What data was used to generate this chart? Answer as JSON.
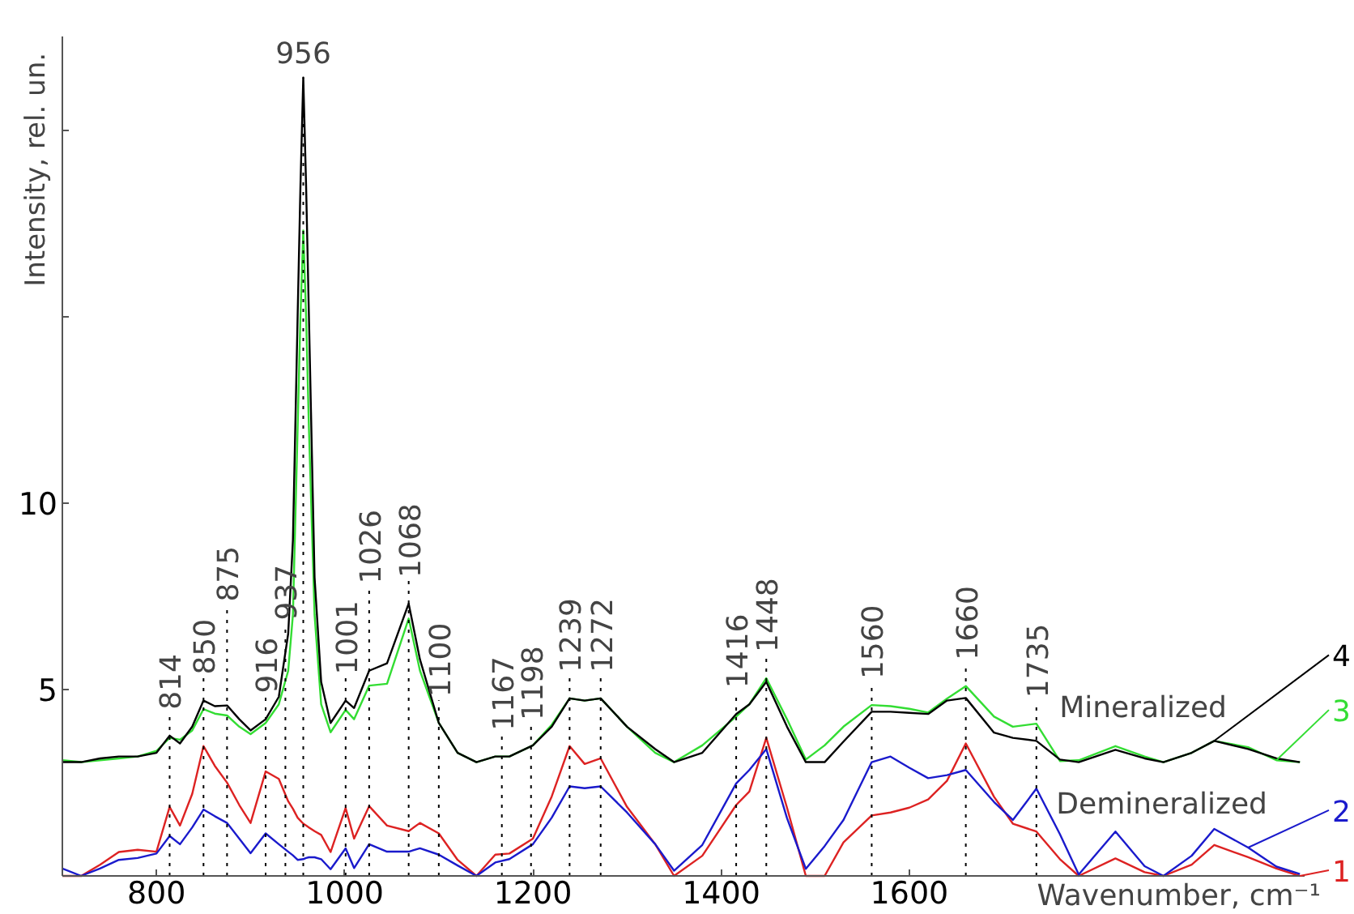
{
  "chart_data": {
    "type": "line",
    "xlabel": "Wavenumber, cm⁻¹",
    "ylabel": "Intensity, rel. un.",
    "x": [
      700,
      720,
      740,
      760,
      780,
      800,
      814,
      825,
      838,
      850,
      862,
      875,
      888,
      900,
      916,
      930,
      940,
      945,
      950,
      953,
      956,
      959,
      962,
      968,
      975,
      985,
      1001,
      1010,
      1026,
      1045,
      1068,
      1080,
      1100,
      1120,
      1140,
      1160,
      1175,
      1200,
      1220,
      1239,
      1255,
      1272,
      1300,
      1330,
      1350,
      1380,
      1416,
      1430,
      1448,
      1470,
      1490,
      1510,
      1530,
      1560,
      1580,
      1600,
      1620,
      1640,
      1660,
      1690,
      1710,
      1735,
      1760,
      1780,
      1819,
      1850,
      1870,
      1900,
      1924,
      1960,
      1990,
      2015
    ],
    "series": [
      {
        "name": "1",
        "color": "#dd2222",
        "values": [
          0,
          0,
          0.3,
          0.64,
          0.7,
          0.65,
          1.85,
          1.35,
          2.2,
          3.48,
          2.95,
          2.5,
          1.9,
          1.42,
          2.8,
          2.6,
          2.0,
          1.8,
          1.56,
          1.48,
          1.4,
          1.35,
          1.3,
          1.2,
          1.1,
          0.64,
          1.82,
          1.0,
          1.87,
          1.35,
          1.2,
          1.42,
          1.14,
          0.43,
          0,
          0.57,
          0.6,
          1.0,
          2.13,
          3.48,
          3.0,
          3.15,
          1.85,
          0.85,
          0,
          0.54,
          1.9,
          2.26,
          3.7,
          1.83,
          0,
          0,
          0.9,
          1.62,
          1.7,
          1.83,
          2.05,
          2.55,
          3.55,
          2.12,
          1.4,
          1.19,
          0.45,
          0,
          0.47,
          0.1,
          0,
          0.3,
          0.83,
          0.5,
          0.2,
          0
        ]
      },
      {
        "name": "2",
        "color": "#1a1acc",
        "values": [
          0.2,
          0,
          0.2,
          0.43,
          0.48,
          0.6,
          1.07,
          0.85,
          1.3,
          1.78,
          1.6,
          1.42,
          1.0,
          0.61,
          1.14,
          0.85,
          0.65,
          0.55,
          0.43,
          0.44,
          0.45,
          0.48,
          0.5,
          0.5,
          0.45,
          0.18,
          0.74,
          0.21,
          0.85,
          0.65,
          0.65,
          0.74,
          0.57,
          0.28,
          0,
          0.36,
          0.45,
          0.85,
          1.56,
          2.4,
          2.35,
          2.4,
          1.7,
          0.85,
          0.14,
          0.83,
          2.48,
          2.84,
          3.4,
          1.55,
          0.19,
          0.8,
          1.5,
          3.05,
          3.2,
          2.9,
          2.62,
          2.7,
          2.84,
          1.98,
          1.5,
          2.34,
          1.12,
          0.04,
          1.19,
          0.26,
          0,
          0.54,
          1.26,
          0.76,
          0.25,
          0.05
        ]
      },
      {
        "name": "3",
        "color": "#33dd33",
        "values": [
          3.1,
          3.05,
          3.1,
          3.15,
          3.2,
          3.35,
          3.7,
          3.65,
          3.9,
          4.47,
          4.35,
          4.3,
          4.0,
          3.8,
          4.1,
          4.6,
          5.5,
          7,
          12,
          15,
          17.3,
          15,
          12,
          7,
          4.6,
          3.85,
          4.45,
          4.2,
          5.1,
          5.15,
          6.9,
          5.5,
          4.1,
          3.3,
          3.05,
          3.2,
          3.2,
          3.5,
          4.05,
          4.76,
          4.7,
          4.76,
          4.0,
          3.3,
          3.05,
          3.5,
          4.27,
          4.6,
          5.3,
          4.2,
          3.12,
          3.5,
          4.0,
          4.58,
          4.55,
          4.48,
          4.38,
          4.75,
          5.09,
          4.27,
          4.0,
          4.08,
          3.08,
          3.1,
          3.48,
          3.2,
          3.05,
          3.3,
          3.62,
          3.45,
          3.1,
          3.05
        ]
      },
      {
        "name": "4",
        "color": "#000000",
        "values": [
          3.05,
          3.05,
          3.15,
          3.2,
          3.2,
          3.3,
          3.76,
          3.55,
          4.0,
          4.7,
          4.55,
          4.57,
          4.2,
          3.9,
          4.2,
          4.8,
          6.5,
          9,
          15,
          18.5,
          21.4,
          18.5,
          15,
          8,
          5.2,
          4.1,
          4.7,
          4.5,
          5.5,
          5.7,
          7.3,
          5.8,
          4.1,
          3.3,
          3.05,
          3.2,
          3.2,
          3.5,
          4.0,
          4.76,
          4.7,
          4.76,
          4.0,
          3.4,
          3.05,
          3.3,
          4.34,
          4.6,
          5.2,
          4.0,
          3.05,
          3.05,
          3.6,
          4.4,
          4.4,
          4.37,
          4.34,
          4.7,
          4.77,
          3.84,
          3.7,
          3.62,
          3.12,
          3.05,
          3.38,
          3.15,
          3.05,
          3.3,
          3.62,
          3.4,
          3.15,
          3.05
        ]
      }
    ],
    "xlim": [
      700,
      2020
    ],
    "ylim": [
      0,
      22.5
    ],
    "xticks": [
      800,
      1000,
      1200,
      1400,
      1600
    ],
    "yticks": [
      5,
      10,
      {
        "value": 15,
        "label": null
      },
      {
        "value": 20,
        "label": null
      }
    ],
    "ref_lines": [
      {
        "axis": "x",
        "value": 814,
        "label": "814",
        "line_style": "dotted"
      },
      {
        "axis": "x",
        "value": 850,
        "label": "850",
        "line_style": "dotted"
      },
      {
        "axis": "x",
        "value": 875,
        "label": "875",
        "line_style": "dotted"
      },
      {
        "axis": "x",
        "value": 916,
        "label": "916",
        "line_style": "dotted"
      },
      {
        "axis": "x",
        "value": 937,
        "label": "937",
        "line_style": "dotted"
      },
      {
        "axis": "x",
        "value": 956,
        "label": "956",
        "line_style": "dotted"
      },
      {
        "axis": "x",
        "value": 1001,
        "label": "1001",
        "line_style": "dotted"
      },
      {
        "axis": "x",
        "value": 1026,
        "label": "1026",
        "line_style": "dotted"
      },
      {
        "axis": "x",
        "value": 1068,
        "label": "1068",
        "line_style": "dotted"
      },
      {
        "axis": "x",
        "value": 1100,
        "label": "1100",
        "line_style": "dotted"
      },
      {
        "axis": "x",
        "value": 1167,
        "label": "1167",
        "line_style": "dotted"
      },
      {
        "axis": "x",
        "value": 1198,
        "label": "1198",
        "line_style": "dotted"
      },
      {
        "axis": "x",
        "value": 1239,
        "label": "1239",
        "line_style": "dotted"
      },
      {
        "axis": "x",
        "value": 1272,
        "label": "1272",
        "line_style": "dotted"
      },
      {
        "axis": "x",
        "value": 1416,
        "label": "1416",
        "line_style": "dotted"
      },
      {
        "axis": "x",
        "value": 1448,
        "label": "1448",
        "line_style": "dotted"
      },
      {
        "axis": "x",
        "value": 1560,
        "label": "1560",
        "line_style": "dotted"
      },
      {
        "axis": "x",
        "value": 1660,
        "label": "1660",
        "line_style": "dotted"
      },
      {
        "axis": "x",
        "value": 1735,
        "label": "1735",
        "line_style": "dotted"
      }
    ],
    "annotations": [
      "Mineralized",
      "Demineralized"
    ],
    "grid": false,
    "legend": "right"
  }
}
